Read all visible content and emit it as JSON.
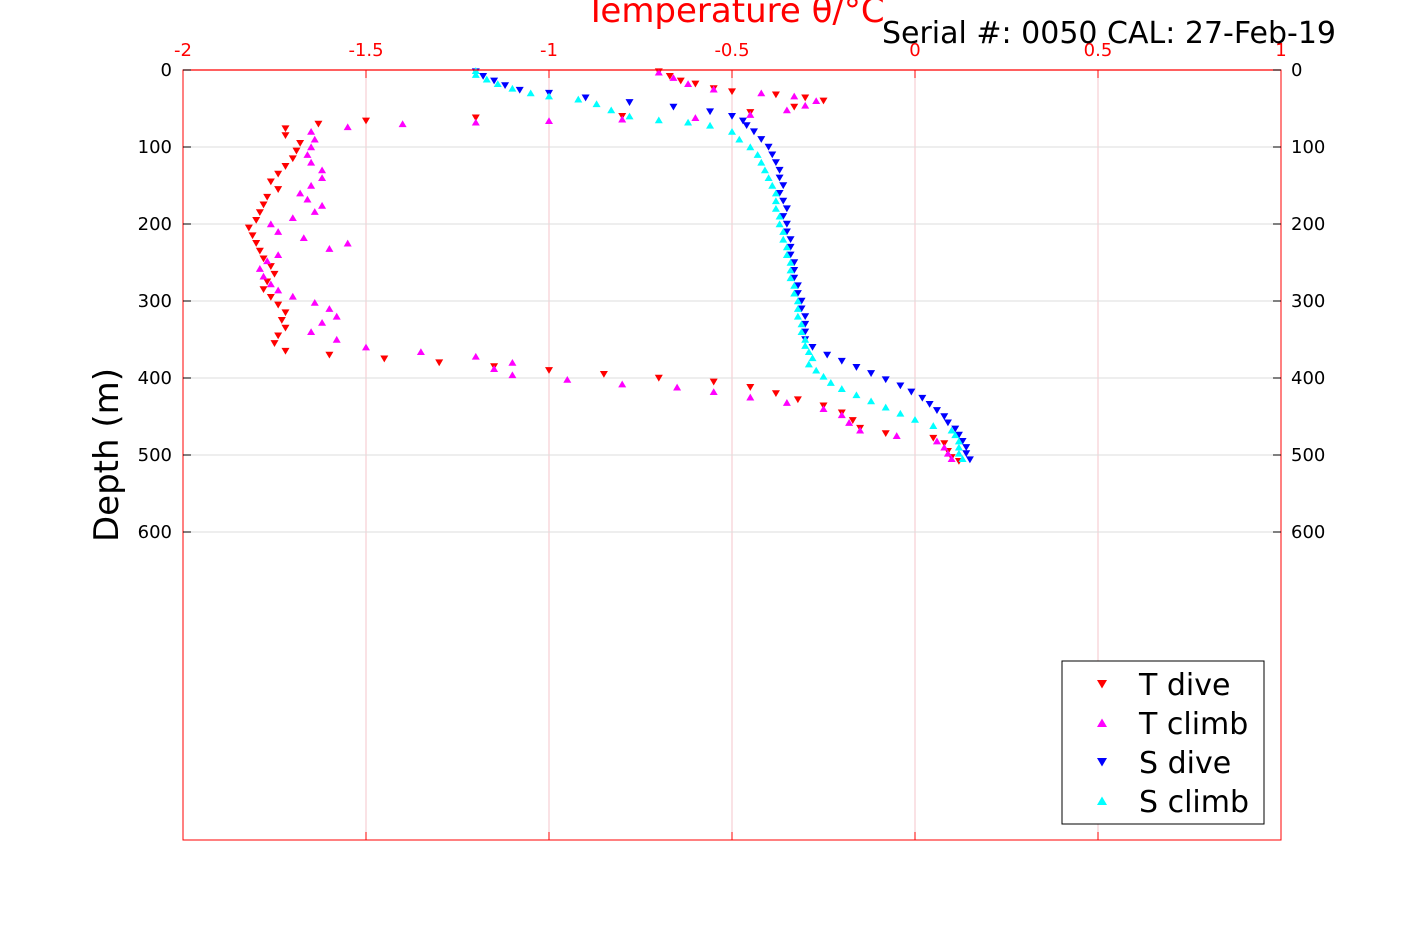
{
  "header": {
    "title": "Temperature θ/°C",
    "serial": "Serial #: 0050  CAL: 27-Feb-19"
  },
  "colors": {
    "axis_top": "#ff0000",
    "axis_frame": "#000000",
    "grid_x": "#f5c6cb",
    "grid_y": "#dddddd",
    "t_dive": "#ff0000",
    "t_climb": "#ff00ff",
    "s_dive": "#0000ff",
    "s_climb": "#00ffff"
  },
  "chart_data": {
    "type": "scatter",
    "title": "Temperature θ/°C",
    "xlabel": "Temperature θ/°C",
    "ylabel": "Depth (m)",
    "xlim": [
      -2,
      1
    ],
    "ylim": [
      0,
      1000
    ],
    "y_reversed": true,
    "xticks": [
      "-2",
      "-1.5",
      "-1",
      "-0.5",
      "0",
      "0.5",
      "1"
    ],
    "yticks": [
      "0",
      "100",
      "200",
      "300",
      "400",
      "500",
      "600"
    ],
    "grid": true,
    "legend_position": "bottom-right",
    "series": [
      {
        "name": "T dive",
        "marker": "triangle-down",
        "color": "#ff0000",
        "points": [
          [
            -0.7,
            2
          ],
          [
            -0.67,
            8
          ],
          [
            -0.64,
            14
          ],
          [
            -0.6,
            18
          ],
          [
            -0.55,
            24
          ],
          [
            -0.5,
            28
          ],
          [
            -0.38,
            32
          ],
          [
            -0.3,
            36
          ],
          [
            -0.25,
            40
          ],
          [
            -0.33,
            48
          ],
          [
            -0.45,
            55
          ],
          [
            -0.8,
            60
          ],
          [
            -1.2,
            62
          ],
          [
            -1.5,
            66
          ],
          [
            -1.63,
            70
          ],
          [
            -1.72,
            76
          ],
          [
            -1.72,
            85
          ],
          [
            -1.68,
            95
          ],
          [
            -1.69,
            105
          ],
          [
            -1.7,
            115
          ],
          [
            -1.72,
            125
          ],
          [
            -1.74,
            135
          ],
          [
            -1.76,
            145
          ],
          [
            -1.74,
            155
          ],
          [
            -1.77,
            165
          ],
          [
            -1.78,
            175
          ],
          [
            -1.79,
            185
          ],
          [
            -1.8,
            195
          ],
          [
            -1.82,
            205
          ],
          [
            -1.81,
            215
          ],
          [
            -1.8,
            225
          ],
          [
            -1.79,
            235
          ],
          [
            -1.78,
            245
          ],
          [
            -1.76,
            255
          ],
          [
            -1.75,
            265
          ],
          [
            -1.77,
            275
          ],
          [
            -1.78,
            285
          ],
          [
            -1.76,
            295
          ],
          [
            -1.74,
            305
          ],
          [
            -1.72,
            315
          ],
          [
            -1.73,
            325
          ],
          [
            -1.72,
            335
          ],
          [
            -1.74,
            345
          ],
          [
            -1.75,
            355
          ],
          [
            -1.72,
            365
          ],
          [
            -1.6,
            370
          ],
          [
            -1.45,
            375
          ],
          [
            -1.3,
            380
          ],
          [
            -1.15,
            385
          ],
          [
            -1.0,
            390
          ],
          [
            -0.85,
            395
          ],
          [
            -0.7,
            400
          ],
          [
            -0.55,
            405
          ],
          [
            -0.45,
            412
          ],
          [
            -0.38,
            420
          ],
          [
            -0.32,
            428
          ],
          [
            -0.25,
            436
          ],
          [
            -0.2,
            445
          ],
          [
            -0.17,
            455
          ],
          [
            -0.15,
            465
          ],
          [
            -0.08,
            472
          ],
          [
            0.05,
            478
          ],
          [
            0.08,
            485
          ],
          [
            0.09,
            495
          ],
          [
            0.1,
            503
          ],
          [
            0.12,
            508
          ]
        ]
      },
      {
        "name": "T climb",
        "marker": "triangle-up",
        "color": "#ff00ff",
        "points": [
          [
            0.1,
            505
          ],
          [
            0.09,
            498
          ],
          [
            0.08,
            490
          ],
          [
            0.06,
            482
          ],
          [
            -0.05,
            475
          ],
          [
            -0.15,
            468
          ],
          [
            -0.18,
            458
          ],
          [
            -0.2,
            448
          ],
          [
            -0.25,
            440
          ],
          [
            -0.35,
            432
          ],
          [
            -0.45,
            425
          ],
          [
            -0.55,
            418
          ],
          [
            -0.65,
            412
          ],
          [
            -0.8,
            408
          ],
          [
            -0.95,
            402
          ],
          [
            -1.1,
            396
          ],
          [
            -1.15,
            388
          ],
          [
            -1.1,
            380
          ],
          [
            -1.2,
            372
          ],
          [
            -1.35,
            366
          ],
          [
            -1.5,
            360
          ],
          [
            -1.58,
            350
          ],
          [
            -1.65,
            340
          ],
          [
            -1.62,
            328
          ],
          [
            -1.58,
            320
          ],
          [
            -1.6,
            310
          ],
          [
            -1.64,
            302
          ],
          [
            -1.7,
            294
          ],
          [
            -1.74,
            286
          ],
          [
            -1.76,
            278
          ],
          [
            -1.78,
            268
          ],
          [
            -1.79,
            258
          ],
          [
            -1.77,
            248
          ],
          [
            -1.74,
            240
          ],
          [
            -1.6,
            232
          ],
          [
            -1.55,
            225
          ],
          [
            -1.67,
            218
          ],
          [
            -1.74,
            210
          ],
          [
            -1.76,
            200
          ],
          [
            -1.7,
            192
          ],
          [
            -1.64,
            184
          ],
          [
            -1.62,
            176
          ],
          [
            -1.66,
            168
          ],
          [
            -1.68,
            160
          ],
          [
            -1.65,
            150
          ],
          [
            -1.62,
            140
          ],
          [
            -1.62,
            130
          ],
          [
            -1.65,
            120
          ],
          [
            -1.66,
            110
          ],
          [
            -1.65,
            100
          ],
          [
            -1.64,
            90
          ],
          [
            -1.65,
            80
          ],
          [
            -1.55,
            74
          ],
          [
            -1.4,
            70
          ],
          [
            -1.2,
            68
          ],
          [
            -1.0,
            66
          ],
          [
            -0.8,
            64
          ],
          [
            -0.6,
            62
          ],
          [
            -0.45,
            58
          ],
          [
            -0.35,
            52
          ],
          [
            -0.3,
            46
          ],
          [
            -0.27,
            40
          ],
          [
            -0.33,
            34
          ],
          [
            -0.42,
            30
          ],
          [
            -0.55,
            25
          ],
          [
            -0.62,
            18
          ],
          [
            -0.66,
            10
          ],
          [
            -0.7,
            3
          ]
        ]
      },
      {
        "name": "S dive",
        "marker": "triangle-down",
        "color": "#0000ff",
        "points": [
          [
            -1.2,
            2
          ],
          [
            -1.18,
            8
          ],
          [
            -1.15,
            14
          ],
          [
            -1.12,
            20
          ],
          [
            -1.08,
            26
          ],
          [
            -1.0,
            30
          ],
          [
            -0.9,
            36
          ],
          [
            -0.78,
            42
          ],
          [
            -0.66,
            48
          ],
          [
            -0.56,
            54
          ],
          [
            -0.5,
            60
          ],
          [
            -0.47,
            66
          ],
          [
            -0.46,
            72
          ],
          [
            -0.44,
            80
          ],
          [
            -0.42,
            90
          ],
          [
            -0.4,
            100
          ],
          [
            -0.39,
            110
          ],
          [
            -0.38,
            120
          ],
          [
            -0.37,
            130
          ],
          [
            -0.37,
            140
          ],
          [
            -0.36,
            150
          ],
          [
            -0.37,
            160
          ],
          [
            -0.36,
            170
          ],
          [
            -0.35,
            180
          ],
          [
            -0.36,
            190
          ],
          [
            -0.35,
            200
          ],
          [
            -0.35,
            210
          ],
          [
            -0.34,
            220
          ],
          [
            -0.34,
            230
          ],
          [
            -0.34,
            240
          ],
          [
            -0.33,
            250
          ],
          [
            -0.33,
            260
          ],
          [
            -0.33,
            270
          ],
          [
            -0.32,
            280
          ],
          [
            -0.32,
            290
          ],
          [
            -0.31,
            300
          ],
          [
            -0.31,
            310
          ],
          [
            -0.3,
            320
          ],
          [
            -0.3,
            330
          ],
          [
            -0.3,
            340
          ],
          [
            -0.3,
            350
          ],
          [
            -0.28,
            360
          ],
          [
            -0.24,
            370
          ],
          [
            -0.2,
            378
          ],
          [
            -0.16,
            386
          ],
          [
            -0.12,
            394
          ],
          [
            -0.08,
            402
          ],
          [
            -0.04,
            410
          ],
          [
            -0.01,
            418
          ],
          [
            0.02,
            426
          ],
          [
            0.04,
            434
          ],
          [
            0.06,
            442
          ],
          [
            0.08,
            450
          ],
          [
            0.09,
            458
          ],
          [
            0.11,
            466
          ],
          [
            0.12,
            474
          ],
          [
            0.13,
            482
          ],
          [
            0.14,
            490
          ],
          [
            0.14,
            498
          ],
          [
            0.15,
            506
          ]
        ]
      },
      {
        "name": "S climb",
        "marker": "triangle-up",
        "color": "#00ffff",
        "points": [
          [
            0.13,
            505
          ],
          [
            0.12,
            498
          ],
          [
            0.12,
            490
          ],
          [
            0.12,
            482
          ],
          [
            0.11,
            474
          ],
          [
            0.1,
            468
          ],
          [
            0.05,
            462
          ],
          [
            0.0,
            454
          ],
          [
            -0.04,
            446
          ],
          [
            -0.08,
            438
          ],
          [
            -0.12,
            430
          ],
          [
            -0.16,
            422
          ],
          [
            -0.2,
            414
          ],
          [
            -0.23,
            406
          ],
          [
            -0.25,
            398
          ],
          [
            -0.27,
            390
          ],
          [
            -0.29,
            382
          ],
          [
            -0.28,
            374
          ],
          [
            -0.29,
            366
          ],
          [
            -0.3,
            358
          ],
          [
            -0.3,
            350
          ],
          [
            -0.31,
            340
          ],
          [
            -0.31,
            330
          ],
          [
            -0.32,
            320
          ],
          [
            -0.32,
            310
          ],
          [
            -0.32,
            300
          ],
          [
            -0.33,
            290
          ],
          [
            -0.33,
            280
          ],
          [
            -0.34,
            270
          ],
          [
            -0.34,
            260
          ],
          [
            -0.34,
            250
          ],
          [
            -0.35,
            240
          ],
          [
            -0.35,
            230
          ],
          [
            -0.36,
            220
          ],
          [
            -0.36,
            210
          ],
          [
            -0.37,
            200
          ],
          [
            -0.37,
            190
          ],
          [
            -0.38,
            180
          ],
          [
            -0.38,
            170
          ],
          [
            -0.38,
            160
          ],
          [
            -0.39,
            150
          ],
          [
            -0.4,
            140
          ],
          [
            -0.41,
            130
          ],
          [
            -0.42,
            120
          ],
          [
            -0.43,
            110
          ],
          [
            -0.45,
            100
          ],
          [
            -0.48,
            90
          ],
          [
            -0.5,
            80
          ],
          [
            -0.56,
            72
          ],
          [
            -0.62,
            68
          ],
          [
            -0.7,
            65
          ],
          [
            -0.78,
            60
          ],
          [
            -0.83,
            52
          ],
          [
            -0.87,
            44
          ],
          [
            -0.92,
            38
          ],
          [
            -1.0,
            34
          ],
          [
            -1.05,
            30
          ],
          [
            -1.1,
            24
          ],
          [
            -1.14,
            18
          ],
          [
            -1.17,
            12
          ],
          [
            -1.2,
            6
          ],
          [
            -1.2,
            1
          ]
        ]
      }
    ]
  }
}
